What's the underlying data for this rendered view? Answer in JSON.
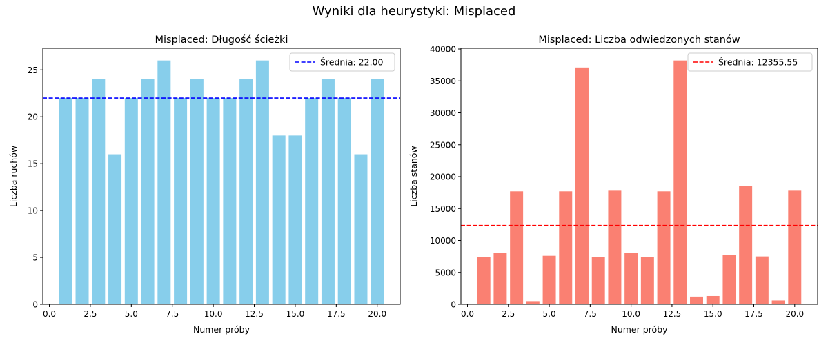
{
  "suptitle": "Wyniki dla heurystyki: Misplaced",
  "chart_data": [
    {
      "type": "bar",
      "title": "Misplaced: Długość ścieżki",
      "xlabel": "Numer próby",
      "ylabel": "Liczba ruchów",
      "bar_color": "#87ceeb",
      "x": [
        1,
        2,
        3,
        4,
        5,
        6,
        7,
        8,
        9,
        10,
        11,
        12,
        13,
        14,
        15,
        16,
        17,
        18,
        19,
        20
      ],
      "values": [
        22,
        22,
        24,
        16,
        22,
        24,
        26,
        22,
        24,
        22,
        22,
        24,
        26,
        18,
        18,
        22,
        24,
        22,
        16,
        24
      ],
      "mean": {
        "value": 22.0,
        "label": "Średnia: 22.00",
        "color": "#0000ff",
        "style": "dashed"
      },
      "xlim": [
        -0.4,
        21.4
      ],
      "ylim": [
        0,
        27.3
      ],
      "xticks": [
        0.0,
        2.5,
        5.0,
        7.5,
        10.0,
        12.5,
        15.0,
        17.5,
        20.0
      ],
      "xtick_labels": [
        "0.0",
        "2.5",
        "5.0",
        "7.5",
        "10.0",
        "12.5",
        "15.0",
        "17.5",
        "20.0"
      ],
      "yticks": [
        0,
        5,
        10,
        15,
        20,
        25
      ],
      "ytick_labels": [
        "0",
        "5",
        "10",
        "15",
        "20",
        "25"
      ],
      "legend_position": "top-right",
      "grid": false
    },
    {
      "type": "bar",
      "title": "Misplaced: Liczba odwiedzonych stanów",
      "xlabel": "Numer próby",
      "ylabel": "Liczba stanów",
      "bar_color": "#fa8072",
      "x": [
        1,
        2,
        3,
        4,
        5,
        6,
        7,
        8,
        9,
        10,
        11,
        12,
        13,
        14,
        15,
        16,
        17,
        18,
        19,
        20
      ],
      "values": [
        7400,
        8000,
        17700,
        500,
        7600,
        17700,
        37100,
        7400,
        17800,
        8000,
        7400,
        17700,
        38200,
        1200,
        1300,
        7700,
        18500,
        7500,
        600,
        17800
      ],
      "mean": {
        "value": 12355.55,
        "label": "Średnia: 12355.55",
        "color": "#ff0000",
        "style": "dashed"
      },
      "xlim": [
        -0.4,
        21.4
      ],
      "ylim": [
        0,
        40110
      ],
      "xticks": [
        0.0,
        2.5,
        5.0,
        7.5,
        10.0,
        12.5,
        15.0,
        17.5,
        20.0
      ],
      "xtick_labels": [
        "0.0",
        "2.5",
        "5.0",
        "7.5",
        "10.0",
        "12.5",
        "15.0",
        "17.5",
        "20.0"
      ],
      "yticks": [
        0,
        5000,
        10000,
        15000,
        20000,
        25000,
        30000,
        35000,
        40000
      ],
      "ytick_labels": [
        "0",
        "5000",
        "10000",
        "15000",
        "20000",
        "25000",
        "30000",
        "35000",
        "40000"
      ],
      "legend_position": "top-right",
      "grid": false
    }
  ]
}
